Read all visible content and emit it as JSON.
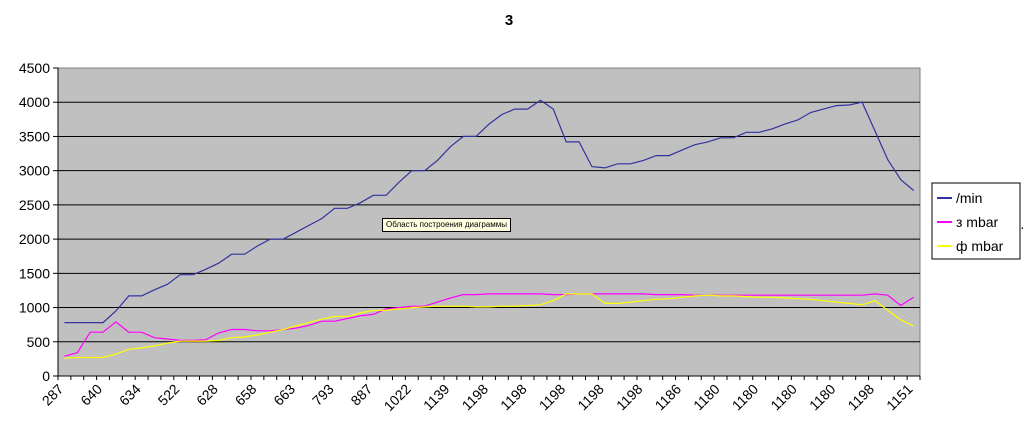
{
  "chart_data": {
    "type": "line",
    "title": "3",
    "xlabel": "",
    "ylabel": "",
    "ylim": [
      0,
      4500
    ],
    "yticks": [
      0,
      500,
      1000,
      1500,
      2000,
      2500,
      3000,
      3500,
      4000,
      4500
    ],
    "x_tick_labels": [
      "287",
      "640",
      "634",
      "522",
      "628",
      "658",
      "663",
      "793",
      "887",
      "1022",
      "1139",
      "1198",
      "1198",
      "1198",
      "1198",
      "1198",
      "1186",
      "1180",
      "1180",
      "1180",
      "1180",
      "1198",
      "1151"
    ],
    "grid": "horizontal",
    "legend_position": "right",
    "plot_area_tooltip": "Область построения диаграммы",
    "series": [
      {
        "name": "/min",
        "color": "#3333a0",
        "values": [
          780,
          780,
          780,
          780,
          950,
          1170,
          1170,
          1260,
          1340,
          1480,
          1480,
          1560,
          1650,
          1780,
          1780,
          1900,
          2000,
          2000,
          2100,
          2200,
          2300,
          2450,
          2450,
          2530,
          2640,
          2640,
          2830,
          3000,
          3000,
          3150,
          3350,
          3500,
          3500,
          3680,
          3820,
          3900,
          3900,
          4030,
          3900,
          3420,
          3420,
          3060,
          3040,
          3100,
          3100,
          3150,
          3220,
          3220,
          3300,
          3380,
          3420,
          3480,
          3480,
          3560,
          3560,
          3610,
          3680,
          3740,
          3850,
          3900,
          3950,
          3960,
          4000,
          3580,
          3160,
          2870,
          2710
        ]
      },
      {
        "name": "з mbar",
        "color": "#ff00ff",
        "values": [
          290,
          340,
          640,
          640,
          790,
          640,
          640,
          560,
          540,
          520,
          520,
          530,
          630,
          680,
          680,
          660,
          660,
          680,
          700,
          740,
          800,
          800,
          840,
          880,
          900,
          980,
          1000,
          1020,
          1020,
          1080,
          1140,
          1190,
          1190,
          1200,
          1200,
          1200,
          1200,
          1200,
          1190,
          1190,
          1200,
          1200,
          1200,
          1200,
          1200,
          1200,
          1190,
          1190,
          1190,
          1180,
          1180,
          1180,
          1180,
          1180,
          1180,
          1180,
          1180,
          1180,
          1180,
          1180,
          1180,
          1180,
          1180,
          1200,
          1180,
          1030,
          1150
        ]
      },
      {
        "name": "ф mbar",
        "color": "#ffff00",
        "values": [
          260,
          270,
          270,
          270,
          320,
          390,
          410,
          440,
          480,
          510,
          510,
          510,
          520,
          560,
          570,
          600,
          640,
          680,
          730,
          780,
          830,
          870,
          870,
          920,
          960,
          960,
          980,
          1000,
          1010,
          1020,
          1020,
          1020,
          1010,
          1010,
          1020,
          1020,
          1030,
          1040,
          1100,
          1200,
          1200,
          1200,
          1060,
          1060,
          1080,
          1100,
          1120,
          1130,
          1150,
          1170,
          1180,
          1170,
          1170,
          1160,
          1150,
          1150,
          1140,
          1130,
          1120,
          1100,
          1080,
          1060,
          1040,
          1100,
          960,
          820,
          730
        ]
      }
    ]
  }
}
